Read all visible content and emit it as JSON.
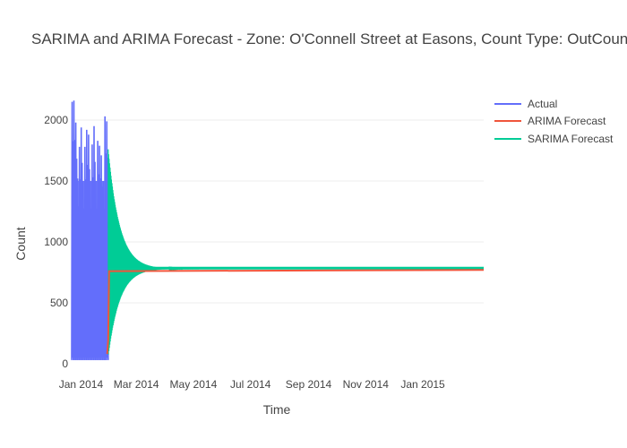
{
  "chart_data": {
    "type": "line",
    "title": "SARIMA and ARIMA Forecast - Zone: O'Connell Street at Easons, Count Type: OutCount",
    "xlabel": "Time",
    "ylabel": "Count",
    "x_ticks": [
      "Jan 2014",
      "Mar 2014",
      "May 2014",
      "Jul 2014",
      "Sep 2014",
      "Nov 2014",
      "Jan 2015"
    ],
    "x_range": [
      "2013-12-22",
      "2015-03-07"
    ],
    "y_ticks": [
      0,
      500,
      1000,
      1500,
      2000
    ],
    "ylim": [
      0,
      2250
    ],
    "legend_position": "top-right",
    "series": [
      {
        "name": "Actual",
        "color": "#636efa",
        "x_range": [
          "2013-12-22",
          "2014-01-30"
        ],
        "style": "daily oscillation",
        "low": 30,
        "peaks": [
          2150,
          2160,
          1980,
          1520,
          1780,
          1940,
          1500,
          1780,
          1920,
          1880,
          1500,
          1800,
          1950,
          1500,
          1830,
          1790,
          1710,
          1500,
          2030,
          1990
        ]
      },
      {
        "name": "ARIMA Forecast",
        "color": "#ef553b",
        "start": "2014-01-30",
        "end": "2015-03-07",
        "points": [
          {
            "x": "2014-01-29",
            "y": 80
          },
          {
            "x": "2014-01-30",
            "y": 200
          },
          {
            "x": "2014-01-31",
            "y": 760
          },
          {
            "x": "2015-03-07",
            "y": 770
          }
        ]
      },
      {
        "name": "SARIMA Forecast",
        "color": "#00cc96",
        "start": "2014-01-30",
        "end": "2015-03-07",
        "oscillation": {
          "center": 780,
          "initial_high": 1760,
          "initial_low": 60,
          "decay_days": 12
        }
      }
    ]
  }
}
